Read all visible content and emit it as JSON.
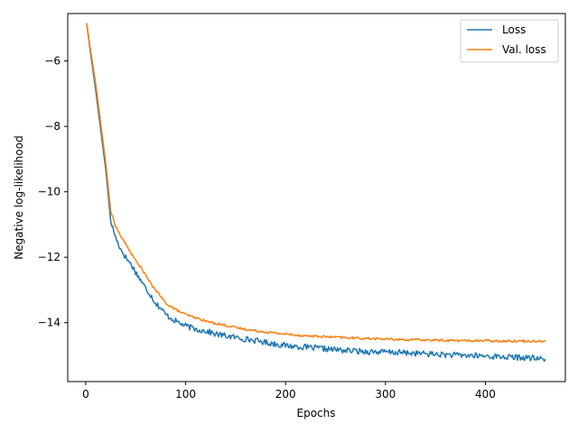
{
  "chart_data": {
    "type": "line",
    "title": "",
    "xlabel": "Epochs",
    "ylabel": "Negative log-likelihood",
    "xlim": [
      -18,
      480
    ],
    "ylim": [
      -15.8,
      -4.55
    ],
    "xticks": [
      0,
      100,
      200,
      300,
      400
    ],
    "yticks": [
      -14,
      -12,
      -10,
      -8,
      -6
    ],
    "xtick_labels": [
      "0",
      "100",
      "200",
      "300",
      "400"
    ],
    "ytick_labels": [
      "−14",
      "−12",
      "−10",
      "−8",
      "−6"
    ],
    "grid": false,
    "legend_position": "top-right",
    "series": [
      {
        "name": "Loss",
        "color": "#1f77b4",
        "points": [
          [
            1,
            -4.85
          ],
          [
            5,
            -5.8
          ],
          [
            10,
            -6.9
          ],
          [
            15,
            -8.1
          ],
          [
            20,
            -9.3
          ],
          [
            25,
            -10.9
          ],
          [
            30,
            -11.4
          ],
          [
            35,
            -11.75
          ],
          [
            40,
            -12.0
          ],
          [
            45,
            -12.2
          ],
          [
            50,
            -12.45
          ],
          [
            55,
            -12.7
          ],
          [
            60,
            -12.95
          ],
          [
            65,
            -13.15
          ],
          [
            70,
            -13.4
          ],
          [
            75,
            -13.55
          ],
          [
            80,
            -13.75
          ],
          [
            90,
            -13.95
          ],
          [
            100,
            -14.1
          ],
          [
            110,
            -14.2
          ],
          [
            120,
            -14.25
          ],
          [
            130,
            -14.35
          ],
          [
            140,
            -14.4
          ],
          [
            150,
            -14.45
          ],
          [
            160,
            -14.5
          ],
          [
            170,
            -14.55
          ],
          [
            180,
            -14.6
          ],
          [
            190,
            -14.65
          ],
          [
            200,
            -14.7
          ],
          [
            220,
            -14.75
          ],
          [
            240,
            -14.8
          ],
          [
            260,
            -14.85
          ],
          [
            280,
            -14.88
          ],
          [
            300,
            -14.9
          ],
          [
            320,
            -14.92
          ],
          [
            340,
            -14.95
          ],
          [
            360,
            -14.98
          ],
          [
            380,
            -15.0
          ],
          [
            400,
            -15.02
          ],
          [
            420,
            -15.05
          ],
          [
            440,
            -15.07
          ],
          [
            460,
            -15.12
          ]
        ],
        "noise": 0.09
      },
      {
        "name": "Val. loss",
        "color": "#ff7f0e",
        "points": [
          [
            1,
            -4.85
          ],
          [
            5,
            -5.7
          ],
          [
            10,
            -6.7
          ],
          [
            15,
            -7.9
          ],
          [
            20,
            -9.1
          ],
          [
            25,
            -10.6
          ],
          [
            30,
            -11.05
          ],
          [
            35,
            -11.35
          ],
          [
            40,
            -11.6
          ],
          [
            45,
            -11.85
          ],
          [
            50,
            -12.1
          ],
          [
            55,
            -12.3
          ],
          [
            60,
            -12.55
          ],
          [
            65,
            -12.8
          ],
          [
            70,
            -13.0
          ],
          [
            75,
            -13.2
          ],
          [
            80,
            -13.4
          ],
          [
            90,
            -13.6
          ],
          [
            100,
            -13.75
          ],
          [
            110,
            -13.85
          ],
          [
            120,
            -13.95
          ],
          [
            130,
            -14.02
          ],
          [
            140,
            -14.08
          ],
          [
            150,
            -14.15
          ],
          [
            160,
            -14.2
          ],
          [
            170,
            -14.25
          ],
          [
            180,
            -14.28
          ],
          [
            190,
            -14.32
          ],
          [
            200,
            -14.35
          ],
          [
            220,
            -14.4
          ],
          [
            240,
            -14.43
          ],
          [
            260,
            -14.46
          ],
          [
            280,
            -14.48
          ],
          [
            300,
            -14.5
          ],
          [
            320,
            -14.52
          ],
          [
            340,
            -14.53
          ],
          [
            360,
            -14.54
          ],
          [
            380,
            -14.55
          ],
          [
            400,
            -14.55
          ],
          [
            420,
            -14.56
          ],
          [
            440,
            -14.56
          ],
          [
            460,
            -14.56
          ]
        ],
        "noise": 0.035
      }
    ]
  }
}
